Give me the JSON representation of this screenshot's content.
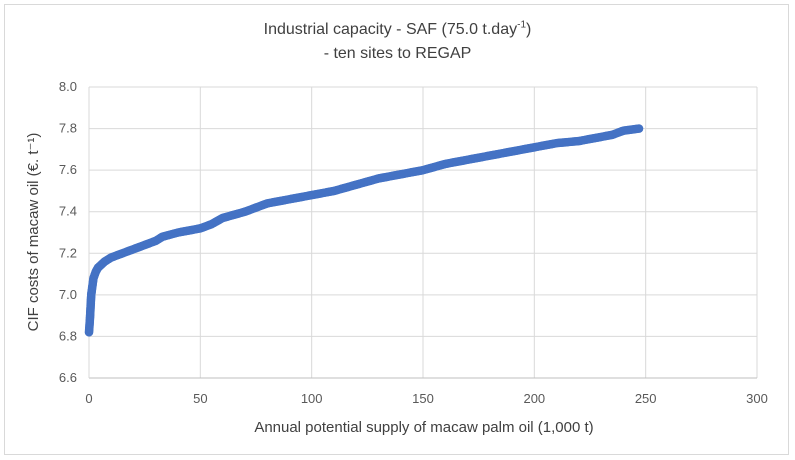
{
  "chart_data": {
    "type": "scatter",
    "title_line_1_prefix": "Industrial capacity  - SAF (75.0 t.day",
    "title_line_1_sup": "-1",
    "title_line_1_suffix": ")",
    "title_line_2": "- ten sites to REGAP",
    "xlabel": "Annual potential supply of macaw palm oil (1,000 t)",
    "ylabel": "CIF costs of macaw oil (€. t⁻¹)",
    "xlim": [
      0,
      300
    ],
    "ylim": [
      6.6,
      8.0
    ],
    "x_ticks": [
      0,
      50,
      100,
      150,
      200,
      250,
      300
    ],
    "y_ticks": [
      6.6,
      6.8,
      7.0,
      7.2,
      7.4,
      7.6,
      7.8,
      8.0
    ],
    "x_tick_labels": [
      "0",
      "50",
      "100",
      "150",
      "200",
      "250",
      "300"
    ],
    "y_tick_labels": [
      "6.6",
      "6.8",
      "7.0",
      "7.2",
      "7.4",
      "7.6",
      "7.8",
      "8.0"
    ],
    "grid": true,
    "marker_color": "#4472C4",
    "series": [
      {
        "x": [
          0,
          0.2,
          0.4,
          0.6,
          0.8,
          1.0,
          1.5,
          2.0,
          3,
          4,
          5,
          7,
          10,
          15,
          20,
          25,
          30,
          33,
          40,
          50,
          55,
          60,
          70,
          80,
          90,
          100,
          110,
          120,
          130,
          140,
          150,
          160,
          170,
          180,
          190,
          200,
          210,
          220,
          230,
          235,
          240,
          247
        ],
        "y": [
          6.82,
          6.85,
          6.88,
          6.92,
          6.96,
          7.0,
          7.04,
          7.08,
          7.11,
          7.13,
          7.14,
          7.16,
          7.18,
          7.2,
          7.22,
          7.24,
          7.26,
          7.28,
          7.3,
          7.32,
          7.34,
          7.37,
          7.4,
          7.44,
          7.46,
          7.48,
          7.5,
          7.53,
          7.56,
          7.58,
          7.6,
          7.63,
          7.65,
          7.67,
          7.69,
          7.71,
          7.73,
          7.74,
          7.76,
          7.77,
          7.79,
          7.8
        ]
      }
    ]
  }
}
